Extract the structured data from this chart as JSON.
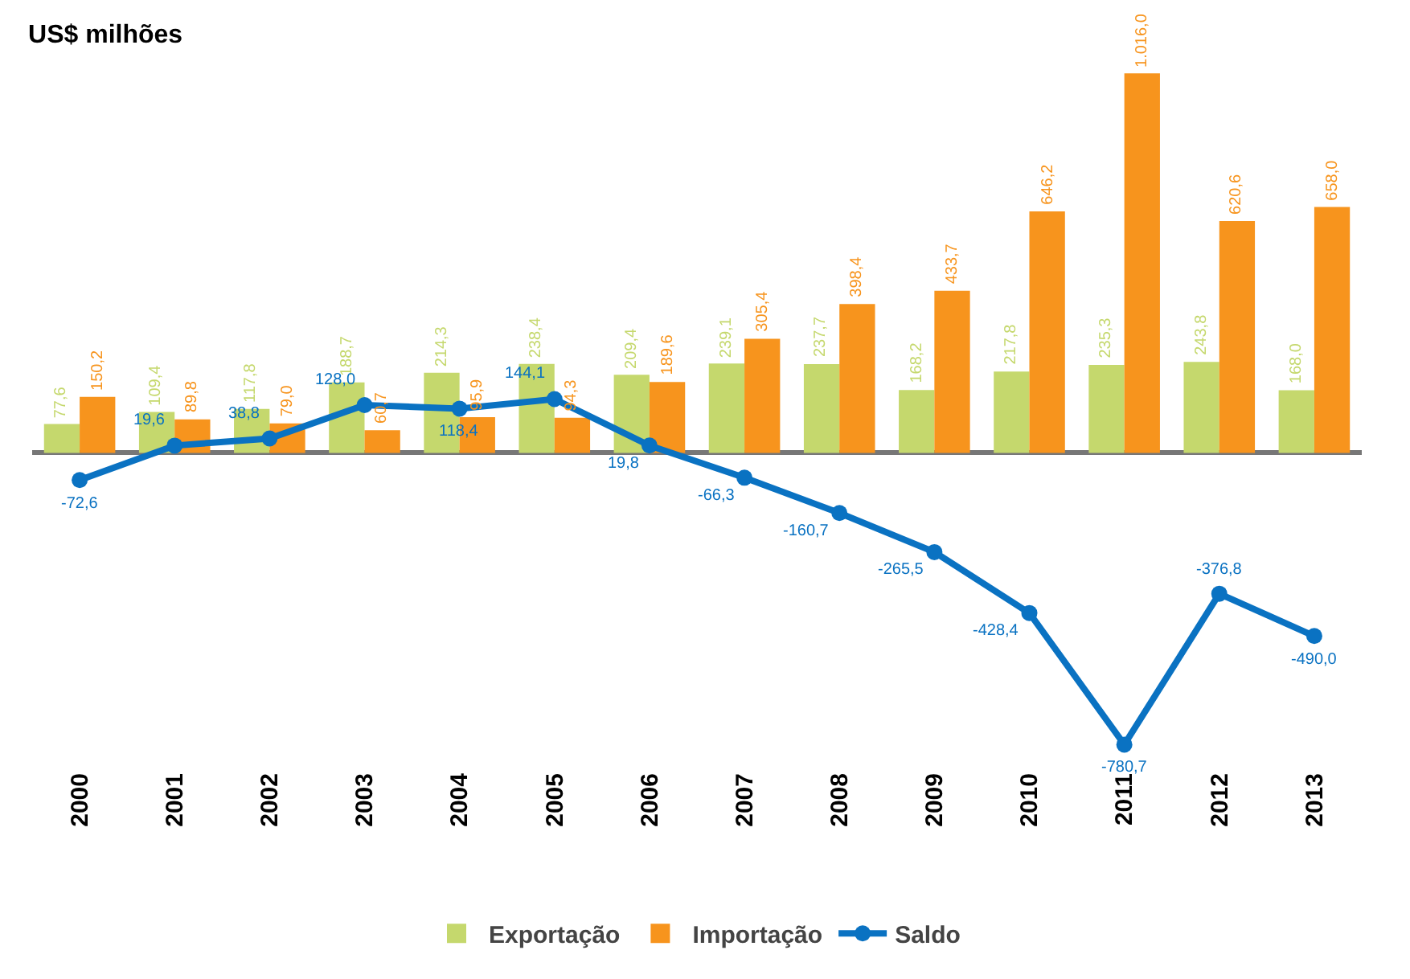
{
  "chart_data": {
    "type": "bar",
    "title": "US$ milhões",
    "categories": [
      "2000",
      "2001",
      "2002",
      "2003",
      "2004",
      "2005",
      "2006",
      "2007",
      "2008",
      "2009",
      "2010",
      "2011",
      "2012",
      "2013"
    ],
    "series": [
      {
        "name": "Exportação",
        "color": "#c5d86d",
        "values": [
          77.6,
          109.4,
          117.8,
          188.7,
          214.3,
          238.4,
          209.4,
          239.1,
          237.7,
          168.2,
          217.8,
          235.3,
          243.8,
          168.0
        ],
        "value_labels": [
          "77,6",
          "109,4",
          "117,8",
          "188,7",
          "214,3",
          "238,4",
          "209,4",
          "239,1",
          "237,7",
          "168,2",
          "217,8",
          "235,3",
          "243,8",
          "168,0"
        ]
      },
      {
        "name": "Importação",
        "color": "#f7941d",
        "values": [
          150.2,
          89.8,
          79.0,
          60.7,
          95.9,
          94.3,
          189.6,
          305.4,
          398.4,
          433.7,
          646.2,
          1016.0,
          620.6,
          658.0
        ],
        "value_labels": [
          "150,2",
          "89,8",
          "79,0",
          "60,7",
          "95,9",
          "94,3",
          "189,6",
          "305,4",
          "398,4",
          "433,7",
          "646,2",
          "1.016,0",
          "620,6",
          "658,0"
        ]
      },
      {
        "name": "Saldo",
        "type": "line",
        "color": "#0a72c2",
        "values": [
          -72.6,
          19.6,
          38.8,
          128.0,
          118.4,
          144.1,
          19.8,
          -66.3,
          -160.7,
          -265.5,
          -428.4,
          -780.7,
          -376.8,
          -490.0
        ],
        "value_labels": [
          "-72,6",
          "19,6",
          "38,8",
          "128,0",
          "118,4",
          "144,1",
          "19,8",
          "-66,3",
          "-160,7",
          "-265,5",
          "-428,4",
          "-780,7",
          "-376,8",
          "-490,0"
        ]
      }
    ],
    "legend": "bottom",
    "marker": "circle",
    "line_style": "solid",
    "grid": false,
    "tick_labels": "x"
  }
}
